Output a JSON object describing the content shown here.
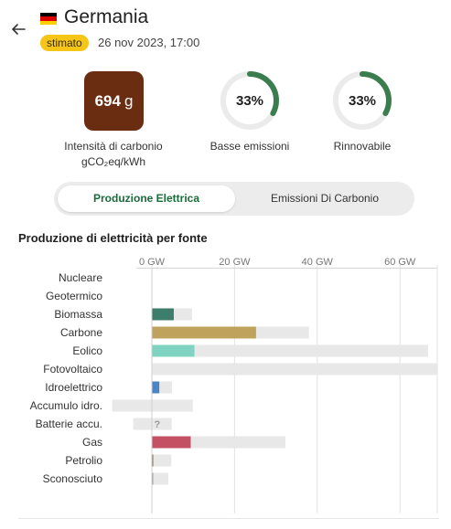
{
  "header": {
    "country": "Germania",
    "flag_icon": "germany-flag-icon",
    "badge": "stimato",
    "timestamp": "26 nov 2023, 17:00"
  },
  "metrics": {
    "carbon_intensity": {
      "value": "694",
      "unit": "g",
      "label_line1": "Intensità di carbonio",
      "label_line2": "gCO₂eq/kWh",
      "color": "#6b2d12"
    },
    "low_emission": {
      "value": "33%",
      "fraction": 0.33,
      "label": "Basse emissioni"
    },
    "renewable": {
      "value": "33%",
      "fraction": 0.33,
      "label": "Rinnovabile"
    }
  },
  "tabs": [
    {
      "label": "Produzione Elettrica",
      "active": true
    },
    {
      "label": "Emissioni Di Carbonio",
      "active": false
    }
  ],
  "colors": {
    "accent_green": "#1a6b3a",
    "ring_green": "#3b7d4f",
    "badge_yellow": "#f5c518"
  },
  "chart_data": {
    "type": "bar",
    "title": "Produzione di elettricità per fonte",
    "unit": "GW",
    "x_ticks": [
      {
        "value": 0,
        "label": "0 GW"
      },
      {
        "value": 20,
        "label": "20 GW"
      },
      {
        "value": 40,
        "label": "40 GW"
      },
      {
        "value": 60,
        "label": "60 GW"
      }
    ],
    "xlim": [
      -10,
      69
    ],
    "categories": [
      "Nucleare",
      "Geotermico",
      "Biomassa",
      "Carbone",
      "Eolico",
      "Fotovoltaico",
      "Idroelettrico",
      "Accumulo idro.",
      "Batterie accu.",
      "Gas",
      "Petrolio",
      "Sconosciuto"
    ],
    "series": [
      {
        "role": "production",
        "values": [
          0,
          0,
          5.3,
          25.2,
          10.3,
          0,
          1.8,
          0,
          null,
          9.4,
          0.3,
          0.3
        ]
      },
      {
        "role": "capacity",
        "values": [
          0,
          0,
          9.7,
          38.0,
          66.8,
          69.0,
          4.9,
          9.9,
          4.8,
          32.3,
          4.7,
          4.0
        ]
      },
      {
        "role": "capacity_negative",
        "values": [
          0,
          0,
          0,
          0,
          0,
          0,
          0,
          -9.6,
          -4.5,
          0,
          0,
          0
        ]
      }
    ],
    "unknown_label": "?",
    "bar_colors": [
      "#cccccc",
      "#cccccc",
      "#3d7d6b",
      "#bfa35c",
      "#7fd4c1",
      "#f5cf4a",
      "#4a86c5",
      "#3b5f9a",
      "#b07fcf",
      "#c45063",
      "#8a6a4a",
      "#9e9e9e"
    ]
  }
}
